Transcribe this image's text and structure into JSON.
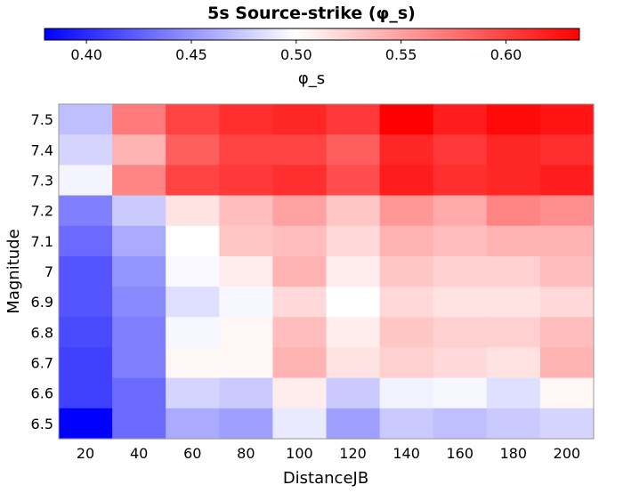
{
  "chart_data": {
    "type": "heatmap",
    "title": "5s Source-strike (φ_s)",
    "xlabel": "DistanceJB",
    "ylabel": "Magnitude",
    "colorbar": {
      "label": "φ_s",
      "min": 0.38,
      "max": 0.635,
      "center": 0.5,
      "ticks": [
        0.4,
        0.45,
        0.5,
        0.55,
        0.6
      ],
      "tick_labels": [
        "0.40",
        "0.45",
        "0.50",
        "0.55",
        "0.60"
      ],
      "colors": {
        "low": "#0000ff",
        "mid": "#ffffff",
        "high": "#ff0000"
      }
    },
    "x_categories": [
      "20",
      "40",
      "60",
      "80",
      "100",
      "120",
      "140",
      "160",
      "180",
      "200"
    ],
    "y_categories": [
      "7.5",
      "7.4",
      "7.3",
      "7.2",
      "7.1",
      "7",
      "6.9",
      "6.8",
      "6.7",
      "6.6",
      "6.5"
    ],
    "values": [
      [
        0.47,
        0.57,
        0.6,
        0.61,
        0.615,
        0.605,
        0.635,
        0.62,
        0.63,
        0.625
      ],
      [
        0.48,
        0.54,
        0.585,
        0.6,
        0.6,
        0.585,
        0.615,
        0.605,
        0.615,
        0.61
      ],
      [
        0.495,
        0.565,
        0.6,
        0.605,
        0.61,
        0.595,
        0.62,
        0.61,
        0.615,
        0.62
      ],
      [
        0.44,
        0.475,
        0.515,
        0.535,
        0.55,
        0.53,
        0.555,
        0.545,
        0.565,
        0.56
      ],
      [
        0.43,
        0.46,
        0.5,
        0.53,
        0.535,
        0.52,
        0.54,
        0.535,
        0.54,
        0.54
      ],
      [
        0.42,
        0.45,
        0.497,
        0.51,
        0.54,
        0.51,
        0.53,
        0.525,
        0.525,
        0.535
      ],
      [
        0.42,
        0.445,
        0.485,
        0.496,
        0.52,
        0.5,
        0.52,
        0.515,
        0.515,
        0.52
      ],
      [
        0.415,
        0.44,
        0.496,
        0.505,
        0.535,
        0.51,
        0.53,
        0.525,
        0.525,
        0.535
      ],
      [
        0.41,
        0.44,
        0.505,
        0.505,
        0.54,
        0.515,
        0.525,
        0.52,
        0.515,
        0.54
      ],
      [
        0.41,
        0.43,
        0.48,
        0.475,
        0.51,
        0.475,
        0.494,
        0.496,
        0.485,
        0.505
      ],
      [
        0.38,
        0.43,
        0.46,
        0.455,
        0.49,
        0.455,
        0.475,
        0.47,
        0.475,
        0.48
      ]
    ]
  }
}
